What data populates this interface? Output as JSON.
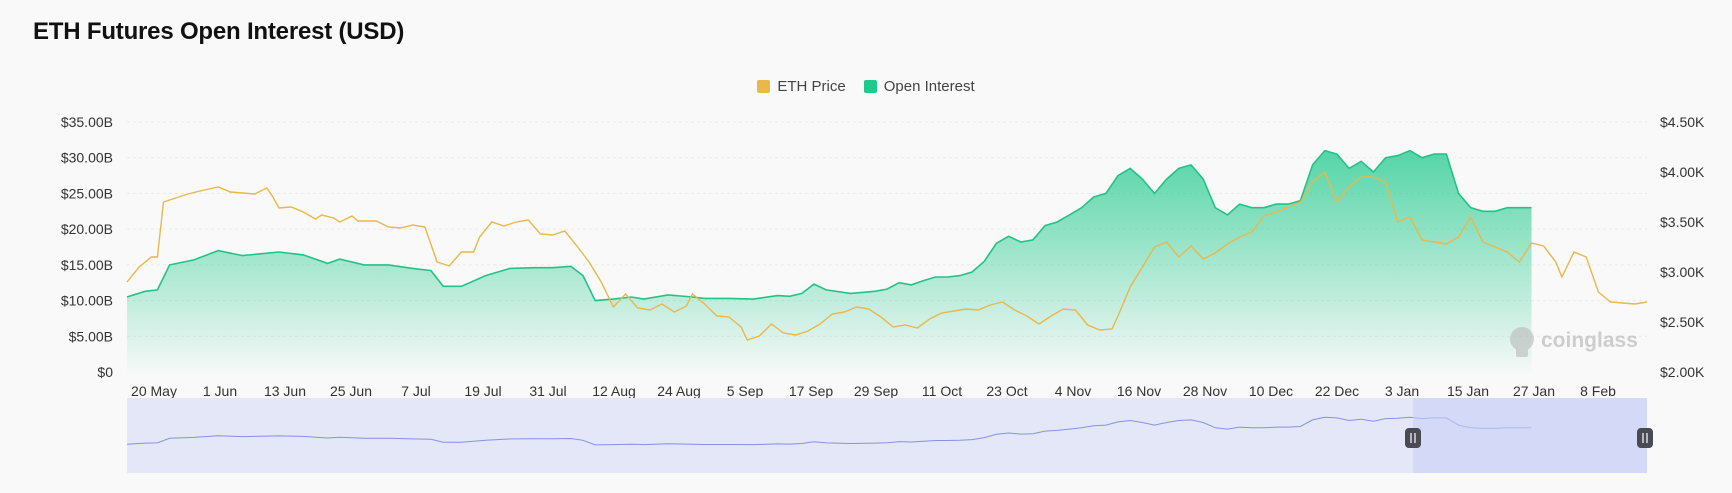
{
  "page": {
    "title": "ETH Futures Open Interest (USD)"
  },
  "colors": {
    "eth_price": "#e8b84a",
    "open_interest": "#1ec98c",
    "navigator": "#8593e0",
    "navigator_fill": "#e3e7f7",
    "navigator_selected": "#d3daf7"
  },
  "watermark": {
    "text": "coinglass"
  },
  "chart_data": {
    "type": "line",
    "title": "ETH Futures Open Interest (USD)",
    "legend": {
      "position": "top-center",
      "items": [
        "ETH Price",
        "Open Interest"
      ]
    },
    "x_labels": [
      "20 May",
      "1 Jun",
      "13 Jun",
      "25 Jun",
      "7 Jul",
      "19 Jul",
      "31 Jul",
      "12 Aug",
      "24 Aug",
      "5 Sep",
      "17 Sep",
      "29 Sep",
      "11 Oct",
      "23 Oct",
      "4 Nov",
      "16 Nov",
      "28 Nov",
      "10 Dec",
      "22 Dec",
      "3 Jan",
      "15 Jan",
      "27 Jan",
      "8 Feb"
    ],
    "y_left": {
      "labels": [
        "$0",
        "$5.00B",
        "$10.00B",
        "$15.00B",
        "$20.00B",
        "$25.00B",
        "$30.00B",
        "$35.00B"
      ],
      "range": [
        0,
        35
      ]
    },
    "y_right": {
      "labels": [
        "$2.00K",
        "$2.50K",
        "$3.00K",
        "$3.50K",
        "$4.00K",
        "$4.50K"
      ],
      "range": [
        2000,
        4500
      ]
    },
    "grid": true,
    "series": [
      {
        "name": "Open Interest",
        "axis": "left",
        "unit": "B USD",
        "type": "area",
        "points": [
          [
            0,
            10.5
          ],
          [
            3,
            11.3
          ],
          [
            5,
            11.5
          ],
          [
            7,
            15
          ],
          [
            11,
            15.7
          ],
          [
            15,
            17
          ],
          [
            19,
            16.3
          ],
          [
            25,
            16.8
          ],
          [
            29,
            16.4
          ],
          [
            33,
            15.2
          ],
          [
            35,
            15.8
          ],
          [
            39,
            15
          ],
          [
            43,
            15
          ],
          [
            47,
            14.5
          ],
          [
            50,
            14.2
          ],
          [
            52,
            12
          ],
          [
            55,
            12
          ],
          [
            59,
            13.5
          ],
          [
            63,
            14.5
          ],
          [
            67,
            14.6
          ],
          [
            70,
            14.6
          ],
          [
            73,
            14.8
          ],
          [
            75,
            13.5
          ],
          [
            77,
            10
          ],
          [
            80,
            10.2
          ],
          [
            83,
            10.5
          ],
          [
            85,
            10.2
          ],
          [
            89,
            10.8
          ],
          [
            93,
            10.5
          ],
          [
            95,
            10.3
          ],
          [
            99,
            10.3
          ],
          [
            103,
            10.2
          ],
          [
            107,
            10.7
          ],
          [
            109,
            10.6
          ],
          [
            111,
            11
          ],
          [
            113,
            12.3
          ],
          [
            115,
            11.5
          ],
          [
            119,
            11
          ],
          [
            123,
            11.3
          ],
          [
            125,
            11.6
          ],
          [
            127,
            12.5
          ],
          [
            129,
            12.2
          ],
          [
            131,
            12.8
          ],
          [
            133,
            13.3
          ],
          [
            135,
            13.3
          ],
          [
            137,
            13.5
          ],
          [
            139,
            14
          ],
          [
            141,
            15.5
          ],
          [
            143,
            18
          ],
          [
            145,
            19
          ],
          [
            147,
            18.2
          ],
          [
            149,
            18.5
          ],
          [
            151,
            20.5
          ],
          [
            153,
            21
          ],
          [
            155,
            22
          ],
          [
            157,
            23
          ],
          [
            159,
            24.5
          ],
          [
            161,
            25
          ],
          [
            163,
            27.5
          ],
          [
            165,
            28.5
          ],
          [
            167,
            27
          ],
          [
            169,
            25
          ],
          [
            171,
            27
          ],
          [
            173,
            28.5
          ],
          [
            175,
            29
          ],
          [
            177,
            27
          ],
          [
            179,
            23
          ],
          [
            181,
            22
          ],
          [
            183,
            23.5
          ],
          [
            185,
            23
          ],
          [
            187,
            23
          ],
          [
            189,
            23.5
          ],
          [
            191,
            23.5
          ],
          [
            193,
            24
          ],
          [
            195,
            29
          ],
          [
            197,
            31
          ],
          [
            199,
            30.5
          ],
          [
            201,
            28.5
          ],
          [
            203,
            29.5
          ],
          [
            205,
            28
          ],
          [
            207,
            30
          ],
          [
            209,
            30.3
          ],
          [
            211,
            31
          ],
          [
            213,
            30
          ],
          [
            215,
            30.5
          ],
          [
            217,
            30.5
          ],
          [
            219,
            25
          ],
          [
            221,
            23
          ],
          [
            223,
            22.5
          ],
          [
            225,
            22.5
          ],
          [
            227,
            23
          ],
          [
            229,
            23
          ],
          [
            231,
            23
          ]
        ]
      },
      {
        "name": "ETH Price",
        "axis": "right",
        "unit": "USD",
        "type": "line",
        "points": [
          [
            0,
            2900
          ],
          [
            2,
            3050
          ],
          [
            4,
            3150
          ],
          [
            5,
            3150
          ],
          [
            6,
            3700
          ],
          [
            8,
            3740
          ],
          [
            10,
            3780
          ],
          [
            12,
            3810
          ],
          [
            15,
            3850
          ],
          [
            17,
            3800
          ],
          [
            19,
            3790
          ],
          [
            21,
            3780
          ],
          [
            23,
            3840
          ],
          [
            24,
            3750
          ],
          [
            25,
            3640
          ],
          [
            27,
            3650
          ],
          [
            29,
            3600
          ],
          [
            31,
            3530
          ],
          [
            32,
            3570
          ],
          [
            34,
            3540
          ],
          [
            35,
            3500
          ],
          [
            37,
            3560
          ],
          [
            38,
            3510
          ],
          [
            41,
            3510
          ],
          [
            43,
            3450
          ],
          [
            45,
            3440
          ],
          [
            47,
            3470
          ],
          [
            49,
            3450
          ],
          [
            51,
            3100
          ],
          [
            53,
            3060
          ],
          [
            55,
            3200
          ],
          [
            57,
            3200
          ],
          [
            58,
            3350
          ],
          [
            60,
            3500
          ],
          [
            62,
            3460
          ],
          [
            64,
            3500
          ],
          [
            66,
            3520
          ],
          [
            68,
            3380
          ],
          [
            70,
            3370
          ],
          [
            72,
            3410
          ],
          [
            74,
            3260
          ],
          [
            76,
            3100
          ],
          [
            78,
            2900
          ],
          [
            80,
            2650
          ],
          [
            82,
            2780
          ],
          [
            84,
            2640
          ],
          [
            86,
            2620
          ],
          [
            88,
            2680
          ],
          [
            90,
            2600
          ],
          [
            92,
            2660
          ],
          [
            93,
            2780
          ],
          [
            95,
            2680
          ],
          [
            97,
            2560
          ],
          [
            99,
            2550
          ],
          [
            101,
            2450
          ],
          [
            102,
            2320
          ],
          [
            104,
            2360
          ],
          [
            106,
            2480
          ],
          [
            108,
            2390
          ],
          [
            110,
            2370
          ],
          [
            112,
            2410
          ],
          [
            114,
            2480
          ],
          [
            116,
            2580
          ],
          [
            118,
            2600
          ],
          [
            120,
            2650
          ],
          [
            122,
            2630
          ],
          [
            124,
            2550
          ],
          [
            126,
            2450
          ],
          [
            128,
            2470
          ],
          [
            130,
            2440
          ],
          [
            132,
            2530
          ],
          [
            134,
            2590
          ],
          [
            136,
            2610
          ],
          [
            138,
            2630
          ],
          [
            140,
            2620
          ],
          [
            142,
            2670
          ],
          [
            144,
            2700
          ],
          [
            146,
            2620
          ],
          [
            148,
            2560
          ],
          [
            150,
            2480
          ],
          [
            152,
            2560
          ],
          [
            154,
            2630
          ],
          [
            156,
            2620
          ],
          [
            158,
            2470
          ],
          [
            160,
            2420
          ],
          [
            162,
            2430
          ],
          [
            163,
            2560
          ],
          [
            165,
            2850
          ],
          [
            167,
            3050
          ],
          [
            169,
            3250
          ],
          [
            171,
            3300
          ],
          [
            173,
            3150
          ],
          [
            175,
            3260
          ],
          [
            177,
            3130
          ],
          [
            179,
            3190
          ],
          [
            181,
            3280
          ],
          [
            183,
            3350
          ],
          [
            185,
            3400
          ],
          [
            187,
            3560
          ],
          [
            189,
            3600
          ],
          [
            191,
            3650
          ],
          [
            193,
            3700
          ],
          [
            195,
            3900
          ],
          [
            197,
            4000
          ],
          [
            199,
            3700
          ],
          [
            201,
            3850
          ],
          [
            203,
            3950
          ],
          [
            205,
            3950
          ],
          [
            207,
            3900
          ],
          [
            209,
            3500
          ],
          [
            211,
            3550
          ],
          [
            213,
            3320
          ],
          [
            215,
            3300
          ],
          [
            217,
            3280
          ],
          [
            219,
            3350
          ],
          [
            221,
            3550
          ],
          [
            223,
            3300
          ],
          [
            225,
            3250
          ],
          [
            227,
            3200
          ],
          [
            229,
            3100
          ],
          [
            231,
            3290
          ],
          [
            233,
            3260
          ],
          [
            235,
            3100
          ],
          [
            236,
            2950
          ],
          [
            238,
            3200
          ],
          [
            240,
            3150
          ],
          [
            242,
            2800
          ],
          [
            244,
            2700
          ],
          [
            246,
            2690
          ],
          [
            248,
            2680
          ],
          [
            250,
            2700
          ]
        ]
      }
    ]
  }
}
